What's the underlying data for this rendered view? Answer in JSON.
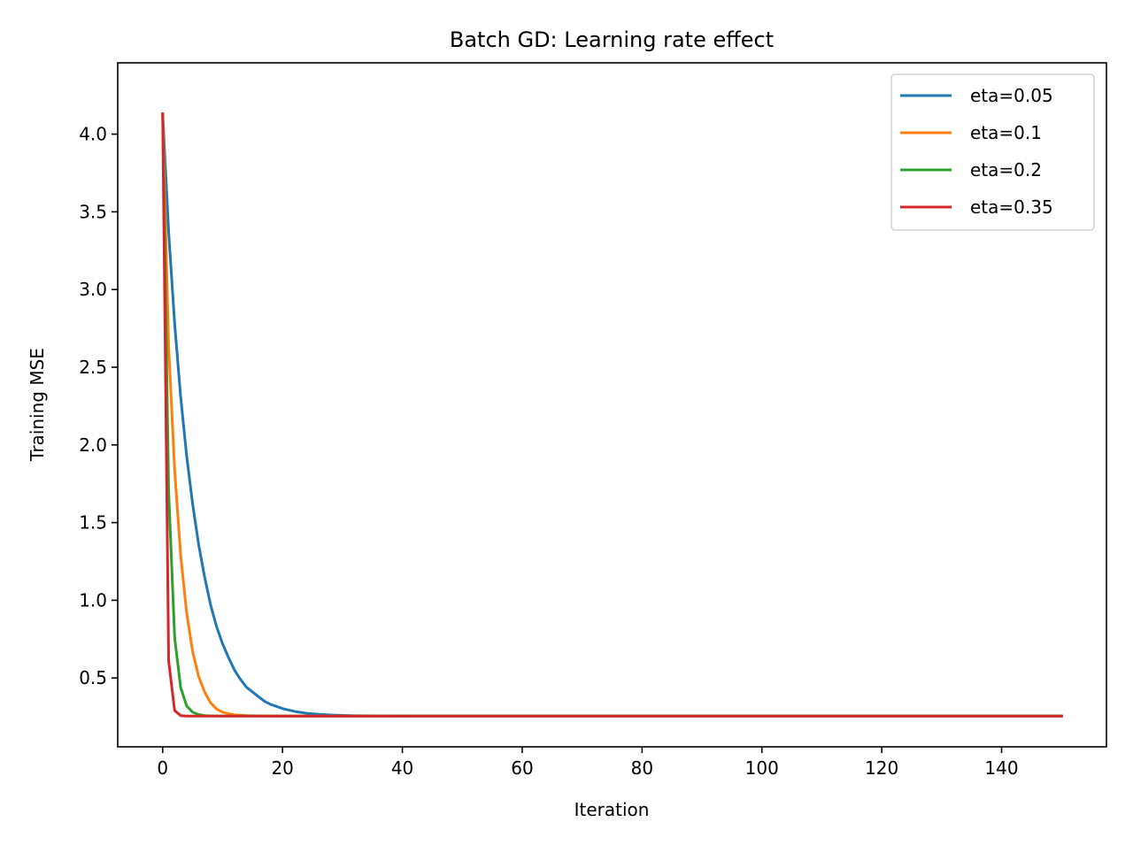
{
  "chart_data": {
    "type": "line",
    "title": "Batch GD: Learning rate effect",
    "xlabel": "Iteration",
    "ylabel": "Training MSE",
    "xlim": [
      -7.5,
      157.5
    ],
    "ylim": [
      0.057,
      4.459
    ],
    "xticks": [
      0,
      20,
      40,
      60,
      80,
      100,
      120,
      140
    ],
    "xtick_labels": [
      "0",
      "20",
      "40",
      "60",
      "80",
      "100",
      "120",
      "140"
    ],
    "yticks": [
      0.5,
      1.0,
      1.5,
      2.0,
      2.5,
      3.0,
      3.5,
      4.0
    ],
    "ytick_labels": [
      "0.5",
      "1.0",
      "1.5",
      "2.0",
      "2.5",
      "3.0",
      "3.5",
      "4.0"
    ],
    "grid": false,
    "legend_position": "top-right",
    "x_range": [
      0,
      150
    ],
    "series": [
      {
        "name": "eta=0.05",
        "color": "#1f77b4",
        "x": [
          0,
          1,
          2,
          3,
          4,
          5,
          6,
          7,
          8,
          9,
          10,
          11,
          12,
          13,
          14,
          15,
          16,
          17,
          18,
          19,
          20,
          22,
          24,
          26,
          28,
          30,
          32,
          35,
          40,
          50,
          60,
          80,
          100,
          120,
          150
        ],
        "y": [
          4.13,
          3.37,
          2.78,
          2.31,
          1.93,
          1.62,
          1.36,
          1.15,
          0.97,
          0.83,
          0.72,
          0.63,
          0.55,
          0.49,
          0.44,
          0.41,
          0.38,
          0.35,
          0.33,
          0.317,
          0.303,
          0.285,
          0.273,
          0.266,
          0.262,
          0.259,
          0.257,
          0.256,
          0.255,
          0.255,
          0.255,
          0.255,
          0.255,
          0.255,
          0.255
        ]
      },
      {
        "name": "eta=0.1",
        "color": "#ff7f0e",
        "x": [
          0,
          1,
          2,
          3,
          4,
          5,
          6,
          7,
          8,
          9,
          10,
          11,
          12,
          14,
          16,
          18,
          20,
          25,
          30,
          40,
          60,
          100,
          150
        ],
        "y": [
          4.13,
          2.63,
          1.84,
          1.29,
          0.92,
          0.67,
          0.51,
          0.41,
          0.34,
          0.3,
          0.28,
          0.27,
          0.263,
          0.258,
          0.256,
          0.255,
          0.255,
          0.255,
          0.255,
          0.255,
          0.255,
          0.255,
          0.255
        ]
      },
      {
        "name": "eta=0.2",
        "color": "#2ca02c",
        "x": [
          0,
          1,
          2,
          3,
          4,
          5,
          6,
          7,
          8,
          10,
          15,
          20,
          40,
          150
        ],
        "y": [
          4.13,
          1.7,
          0.76,
          0.44,
          0.32,
          0.28,
          0.265,
          0.258,
          0.256,
          0.255,
          0.255,
          0.255,
          0.255,
          0.255
        ]
      },
      {
        "name": "eta=0.35",
        "color": "#d62728",
        "x": [
          0,
          1,
          2,
          3,
          4,
          5,
          10,
          20,
          150
        ],
        "y": [
          4.13,
          0.61,
          0.29,
          0.258,
          0.255,
          0.255,
          0.255,
          0.255,
          0.255
        ]
      }
    ]
  }
}
